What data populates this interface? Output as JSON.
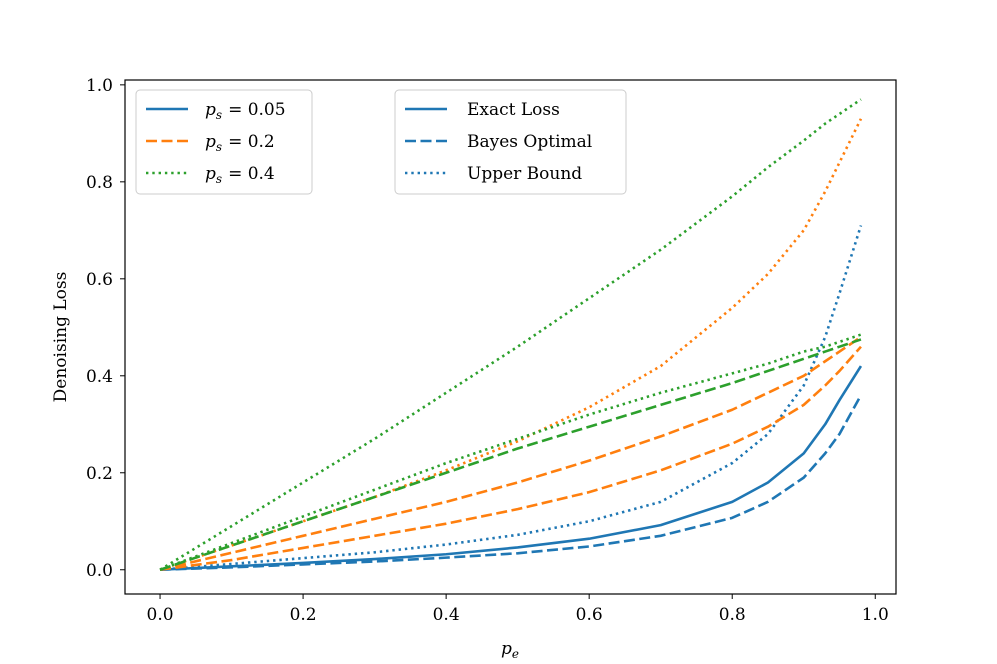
{
  "chart_data": {
    "type": "line",
    "title": "",
    "xlabel": "p_e",
    "ylabel": "Denoising Loss",
    "xlim": [
      -0.049,
      1.029
    ],
    "ylim": [
      -0.05,
      1.01
    ],
    "grid": false,
    "x_ticks": [
      "0.0",
      "0.2",
      "0.4",
      "0.6",
      "0.8",
      "1.0"
    ],
    "y_ticks": [
      "0.0",
      "0.2",
      "0.4",
      "0.6",
      "0.8",
      "1.0"
    ],
    "x": [
      0.0,
      0.1,
      0.2,
      0.3,
      0.4,
      0.5,
      0.6,
      0.7,
      0.8,
      0.85,
      0.9,
      0.93,
      0.95,
      0.98
    ],
    "colors": {
      "p005": "#1f77b4",
      "p02": "#ff7f0e",
      "p04": "#2ca02c"
    },
    "series": [
      {
        "name": "Exact Loss, p_s = 0.05",
        "color": "p005",
        "style": "solid",
        "values": [
          0.0,
          0.007,
          0.014,
          0.022,
          0.032,
          0.046,
          0.064,
          0.092,
          0.14,
          0.18,
          0.24,
          0.3,
          0.35,
          0.42
        ]
      },
      {
        "name": "Bayes Optimal, p_s = 0.05",
        "color": "p005",
        "style": "dashed",
        "values": [
          0.0,
          0.005,
          0.011,
          0.017,
          0.025,
          0.034,
          0.048,
          0.07,
          0.107,
          0.14,
          0.19,
          0.24,
          0.28,
          0.36
        ]
      },
      {
        "name": "Upper Bound, p_s = 0.05",
        "color": "p005",
        "style": "dotted",
        "values": [
          0.0,
          0.012,
          0.024,
          0.036,
          0.052,
          0.072,
          0.1,
          0.14,
          0.22,
          0.28,
          0.38,
          0.48,
          0.57,
          0.71
        ]
      },
      {
        "name": "Exact Loss, p_s = 0.2",
        "color": "p02",
        "style": "dashed",
        "values": [
          0.0,
          0.035,
          0.07,
          0.105,
          0.14,
          0.18,
          0.225,
          0.275,
          0.33,
          0.365,
          0.4,
          0.43,
          0.45,
          0.48
        ]
      },
      {
        "name": "Bayes Optimal, p_s = 0.2",
        "color": "p02",
        "style": "dashed",
        "values": [
          0.0,
          0.02,
          0.045,
          0.07,
          0.095,
          0.125,
          0.16,
          0.205,
          0.26,
          0.295,
          0.34,
          0.38,
          0.41,
          0.46
        ]
      },
      {
        "name": "Upper Bound, p_s = 0.2",
        "color": "p02",
        "style": "dotted",
        "values": [
          0.0,
          0.05,
          0.1,
          0.15,
          0.205,
          0.265,
          0.335,
          0.42,
          0.54,
          0.61,
          0.7,
          0.78,
          0.84,
          0.93
        ]
      },
      {
        "name": "Exact Loss, p_s = 0.4",
        "color": "p04",
        "style": "dashed",
        "values": [
          0.0,
          0.05,
          0.1,
          0.15,
          0.2,
          0.25,
          0.295,
          0.34,
          0.385,
          0.41,
          0.435,
          0.45,
          0.46,
          0.475
        ]
      },
      {
        "name": "Bayes Optimal, p_s = 0.4",
        "color": "p04",
        "style": "dotted",
        "values": [
          0.0,
          0.055,
          0.11,
          0.165,
          0.22,
          0.27,
          0.32,
          0.365,
          0.405,
          0.425,
          0.45,
          0.46,
          0.47,
          0.485
        ]
      },
      {
        "name": "Upper Bound, p_s = 0.4",
        "color": "p04",
        "style": "dotted",
        "values": [
          0.0,
          0.09,
          0.18,
          0.27,
          0.365,
          0.46,
          0.56,
          0.66,
          0.77,
          0.83,
          0.885,
          0.92,
          0.94,
          0.97
        ]
      }
    ],
    "legend_left": {
      "position": "top-left",
      "entries": [
        {
          "var": "p",
          "sub": "s",
          "eq": "= 0.05",
          "color": "p005",
          "style": "solid"
        },
        {
          "var": "p",
          "sub": "s",
          "eq": "= 0.2",
          "color": "p02",
          "style": "dashed"
        },
        {
          "var": "p",
          "sub": "s",
          "eq": "= 0.4",
          "color": "p04",
          "style": "dotted"
        }
      ]
    },
    "legend_right": {
      "position": "top-center",
      "entries": [
        {
          "label": "Exact Loss",
          "color": "p005",
          "style": "solid"
        },
        {
          "label": "Bayes Optimal",
          "color": "p005",
          "style": "dashed"
        },
        {
          "label": "Upper Bound",
          "color": "p005",
          "style": "dotted"
        }
      ]
    }
  }
}
